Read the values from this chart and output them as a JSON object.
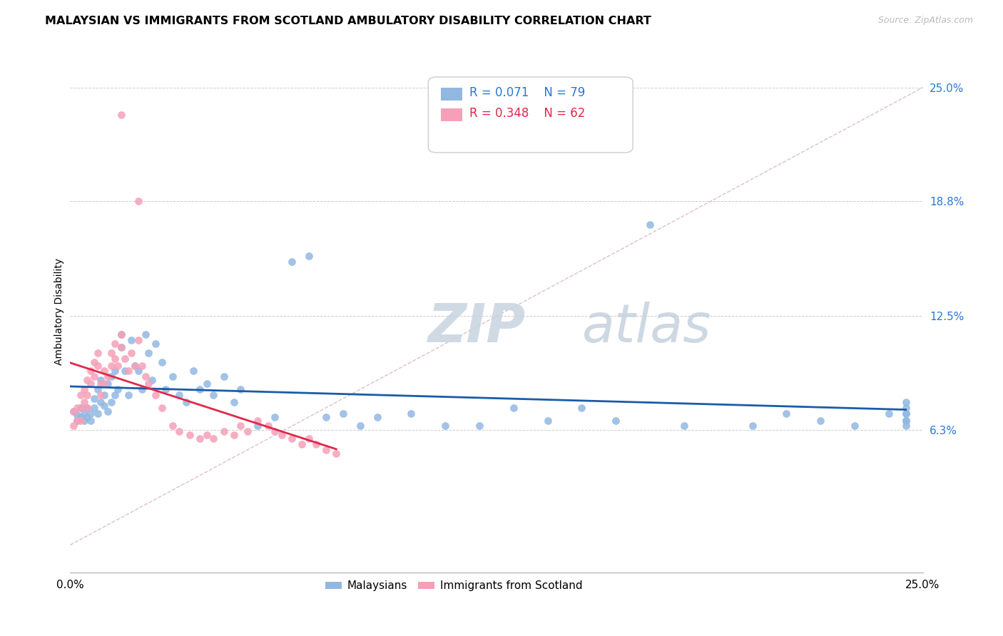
{
  "title": "MALAYSIAN VS IMMIGRANTS FROM SCOTLAND AMBULATORY DISABILITY CORRELATION CHART",
  "source": "Source: ZipAtlas.com",
  "ylabel": "Ambulatory Disability",
  "yticks": [
    "25.0%",
    "18.8%",
    "12.5%",
    "6.3%"
  ],
  "ytick_vals": [
    0.25,
    0.188,
    0.125,
    0.063
  ],
  "xlim": [
    0.0,
    0.25
  ],
  "ylim": [
    -0.015,
    0.27
  ],
  "legend_r1": "R = 0.071",
  "legend_n1": "N = 79",
  "legend_r2": "R = 0.348",
  "legend_n2": "N = 62",
  "color_malaysian": "#92b8e2",
  "color_scotland": "#f5a0b8",
  "color_trendline_malaysian": "#1a5ca8",
  "color_trendline_scotland": "#e0284a",
  "color_diagonal": "#ddc0c8",
  "watermark_color": "#cad8e8",
  "malaysian_x": [
    0.001,
    0.002,
    0.002,
    0.003,
    0.003,
    0.004,
    0.004,
    0.005,
    0.005,
    0.006,
    0.006,
    0.007,
    0.007,
    0.008,
    0.008,
    0.009,
    0.009,
    0.01,
    0.01,
    0.011,
    0.011,
    0.012,
    0.012,
    0.013,
    0.013,
    0.014,
    0.015,
    0.015,
    0.016,
    0.017,
    0.018,
    0.019,
    0.02,
    0.021,
    0.022,
    0.023,
    0.024,
    0.025,
    0.027,
    0.028,
    0.03,
    0.032,
    0.034,
    0.036,
    0.038,
    0.04,
    0.042,
    0.045,
    0.048,
    0.05,
    0.055,
    0.06,
    0.065,
    0.07,
    0.075,
    0.08,
    0.085,
    0.09,
    0.1,
    0.11,
    0.12,
    0.13,
    0.14,
    0.15,
    0.16,
    0.17,
    0.18,
    0.2,
    0.21,
    0.22,
    0.23,
    0.24,
    0.245,
    0.245,
    0.245,
    0.245,
    0.245,
    0.245,
    0.245
  ],
  "malaysian_y": [
    0.073,
    0.071,
    0.068,
    0.075,
    0.07,
    0.072,
    0.068,
    0.075,
    0.07,
    0.072,
    0.068,
    0.08,
    0.075,
    0.085,
    0.072,
    0.09,
    0.078,
    0.082,
    0.076,
    0.088,
    0.073,
    0.092,
    0.078,
    0.095,
    0.082,
    0.085,
    0.115,
    0.108,
    0.095,
    0.082,
    0.112,
    0.098,
    0.095,
    0.085,
    0.115,
    0.105,
    0.09,
    0.11,
    0.1,
    0.085,
    0.092,
    0.082,
    0.078,
    0.095,
    0.085,
    0.088,
    0.082,
    0.092,
    0.078,
    0.085,
    0.065,
    0.07,
    0.155,
    0.158,
    0.07,
    0.072,
    0.065,
    0.07,
    0.072,
    0.065,
    0.065,
    0.075,
    0.068,
    0.075,
    0.068,
    0.175,
    0.065,
    0.065,
    0.072,
    0.068,
    0.065,
    0.072,
    0.078,
    0.075,
    0.072,
    0.068,
    0.065,
    0.068,
    0.072
  ],
  "scotland_x": [
    0.001,
    0.001,
    0.002,
    0.002,
    0.003,
    0.003,
    0.003,
    0.004,
    0.004,
    0.005,
    0.005,
    0.005,
    0.006,
    0.006,
    0.007,
    0.007,
    0.008,
    0.008,
    0.009,
    0.009,
    0.01,
    0.01,
    0.011,
    0.012,
    0.012,
    0.013,
    0.013,
    0.014,
    0.015,
    0.015,
    0.016,
    0.017,
    0.018,
    0.019,
    0.02,
    0.021,
    0.022,
    0.023,
    0.025,
    0.027,
    0.03,
    0.032,
    0.035,
    0.038,
    0.04,
    0.042,
    0.045,
    0.048,
    0.05,
    0.052,
    0.055,
    0.058,
    0.06,
    0.062,
    0.065,
    0.068,
    0.07,
    0.072,
    0.075,
    0.078,
    0.015,
    0.02
  ],
  "scotland_y": [
    0.073,
    0.065,
    0.075,
    0.068,
    0.082,
    0.075,
    0.068,
    0.085,
    0.078,
    0.09,
    0.082,
    0.075,
    0.095,
    0.088,
    0.1,
    0.092,
    0.105,
    0.098,
    0.088,
    0.082,
    0.095,
    0.088,
    0.092,
    0.105,
    0.098,
    0.11,
    0.102,
    0.098,
    0.115,
    0.108,
    0.102,
    0.095,
    0.105,
    0.098,
    0.112,
    0.098,
    0.092,
    0.088,
    0.082,
    0.075,
    0.065,
    0.062,
    0.06,
    0.058,
    0.06,
    0.058,
    0.062,
    0.06,
    0.065,
    0.062,
    0.068,
    0.065,
    0.062,
    0.06,
    0.058,
    0.055,
    0.058,
    0.055,
    0.052,
    0.05,
    0.235,
    0.188
  ]
}
